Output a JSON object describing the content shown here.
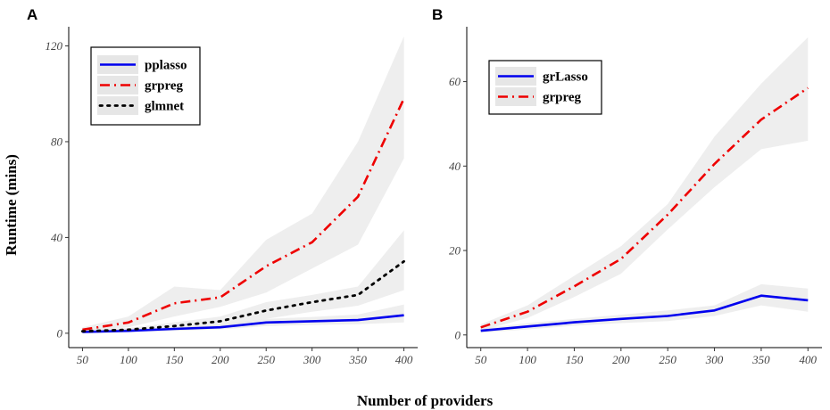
{
  "x_axis_title": "Number of providers",
  "y_axis_title": "Runtime (mins)",
  "chart_data": [
    {
      "panel": "A",
      "type": "line",
      "x": [
        50,
        100,
        150,
        200,
        250,
        300,
        350,
        400
      ],
      "xticks": [
        50,
        100,
        150,
        200,
        250,
        300,
        350,
        400
      ],
      "yticks": [
        0,
        40,
        80,
        120
      ],
      "xlim": [
        35,
        415
      ],
      "ylim": [
        -6,
        128
      ],
      "legend_position": "top-left",
      "series": [
        {
          "name": "pplasso",
          "color": "#0000ee",
          "style": "solid",
          "values": [
            0.5,
            1.0,
            1.8,
            2.5,
            4.5,
            5.0,
            5.5,
            7.5
          ],
          "lower": [
            0.2,
            0.6,
            1.0,
            1.6,
            3.0,
            3.5,
            3.8,
            4.5
          ],
          "upper": [
            0.9,
            1.5,
            2.6,
            3.5,
            6.0,
            6.8,
            7.8,
            12.0
          ]
        },
        {
          "name": "grpreg",
          "color": "#ee0000",
          "style": "dashdot",
          "values": [
            1.5,
            4.5,
            12.5,
            15.0,
            28.0,
            38.0,
            57.0,
            98.0
          ],
          "lower": [
            0.8,
            2.5,
            7.0,
            11.0,
            17.0,
            27.0,
            37.0,
            73.0
          ],
          "upper": [
            2.5,
            7.0,
            19.5,
            18.0,
            39.0,
            50.0,
            80.0,
            124.0
          ]
        },
        {
          "name": "glmnet",
          "color": "#000000",
          "style": "dotted",
          "values": [
            0.8,
            1.5,
            3.0,
            5.0,
            9.5,
            13.0,
            16.0,
            30.0
          ],
          "lower": [
            0.4,
            0.8,
            1.5,
            3.0,
            6.0,
            9.0,
            11.5,
            18.0
          ],
          "upper": [
            1.2,
            2.2,
            4.5,
            7.0,
            13.0,
            16.0,
            19.5,
            43.0
          ]
        }
      ]
    },
    {
      "panel": "B",
      "type": "line",
      "x": [
        50,
        100,
        150,
        200,
        250,
        300,
        350,
        400
      ],
      "xticks": [
        50,
        100,
        150,
        200,
        250,
        300,
        350,
        400
      ],
      "yticks": [
        0,
        20,
        40,
        60
      ],
      "xlim": [
        35,
        415
      ],
      "ylim": [
        -3,
        73
      ],
      "legend_position": "top-left",
      "series": [
        {
          "name": "grLasso",
          "color": "#0000ee",
          "style": "solid",
          "values": [
            1.0,
            2.0,
            3.0,
            3.8,
            4.5,
            5.8,
            9.3,
            8.2
          ],
          "lower": [
            0.5,
            1.3,
            2.2,
            2.8,
            3.3,
            4.5,
            7.0,
            5.5
          ],
          "upper": [
            1.5,
            2.8,
            3.8,
            4.8,
            5.8,
            7.0,
            12.0,
            11.0
          ]
        },
        {
          "name": "grpreg",
          "color": "#ee0000",
          "style": "dashdot",
          "values": [
            1.8,
            5.5,
            11.5,
            18.0,
            28.5,
            40.5,
            51.0,
            58.5
          ],
          "lower": [
            1.0,
            4.0,
            9.0,
            14.5,
            25.0,
            35.0,
            44.0,
            46.0
          ],
          "upper": [
            2.5,
            7.0,
            14.0,
            21.0,
            31.0,
            47.0,
            59.5,
            70.5
          ]
        }
      ]
    }
  ]
}
